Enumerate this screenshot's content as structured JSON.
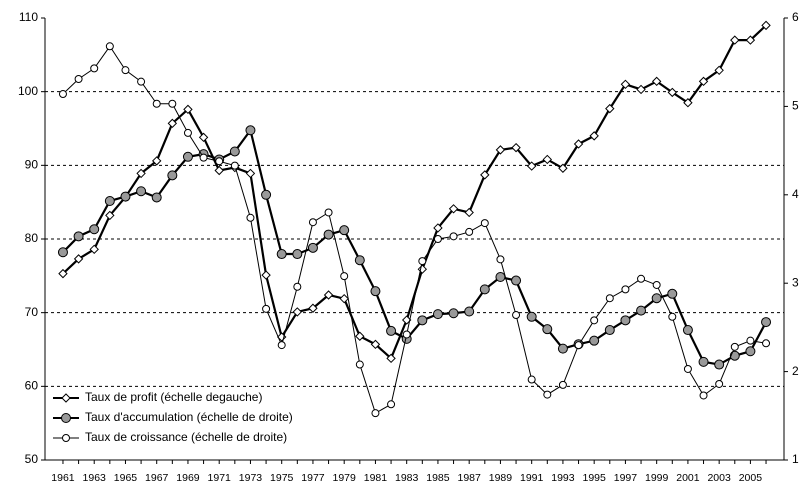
{
  "chart_data": {
    "type": "line",
    "x": [
      1961,
      1962,
      1963,
      1964,
      1965,
      1966,
      1967,
      1968,
      1969,
      1970,
      1971,
      1972,
      1973,
      1974,
      1975,
      1976,
      1977,
      1978,
      1979,
      1980,
      1981,
      1982,
      1983,
      1984,
      1985,
      1986,
      1987,
      1988,
      1989,
      1990,
      1991,
      1992,
      1993,
      1994,
      1995,
      1996,
      1997,
      1998,
      1999,
      2000,
      2001,
      2002,
      2003,
      2004,
      2005,
      2006
    ],
    "xlim": [
      1959.85,
      2007.15
    ],
    "xticks": [
      1961,
      1963,
      1965,
      1967,
      1969,
      1971,
      1973,
      1975,
      1977,
      1979,
      1981,
      1983,
      1985,
      1987,
      1989,
      1991,
      1993,
      1995,
      1997,
      1999,
      2001,
      2003,
      2005
    ],
    "ylim": [
      50,
      110
    ],
    "yticks": [
      50,
      60,
      70,
      80,
      90,
      100,
      110
    ],
    "y2lim": [
      1,
      6
    ],
    "y2ticks": [
      1,
      2,
      3,
      4,
      5,
      6
    ],
    "grid": true,
    "legend": "lower left",
    "series": [
      {
        "name": "Taux de profit (échelle degauche)",
        "color": "#000000",
        "marker": "diamond",
        "fill": "#ffffff",
        "values": [
          75.3,
          77.3,
          78.6,
          83.2,
          85.7,
          88.9,
          90.6,
          95.7,
          97.6,
          93.8,
          89.3,
          89.7,
          88.9,
          75.1,
          66.7,
          70.1,
          70.6,
          72.4,
          71.9,
          66.8,
          65.7,
          63.8,
          69.0,
          75.9,
          81.5,
          84.1,
          83.6,
          88.7,
          92.1,
          92.4,
          89.9,
          90.8,
          89.6,
          92.9,
          94.0,
          97.7,
          101.0,
          100.3,
          101.4,
          99.9,
          98.5,
          101.4,
          102.9,
          107.0,
          107.0,
          109.0
        ]
      },
      {
        "name": "Taux d'accumulation (échelle de droite)",
        "color": "#000000",
        "marker": "circle",
        "fill": "#999999",
        "axis": "y2",
        "values": [
          3.35,
          3.53,
          3.61,
          3.93,
          3.98,
          4.04,
          3.97,
          4.22,
          4.43,
          4.46,
          4.4,
          4.49,
          4.73,
          4.0,
          3.33,
          3.33,
          3.4,
          3.55,
          3.6,
          3.26,
          2.91,
          2.46,
          2.37,
          2.58,
          2.65,
          2.66,
          2.68,
          2.93,
          3.07,
          3.03,
          2.62,
          2.48,
          2.26,
          2.31,
          2.35,
          2.47,
          2.58,
          2.69,
          2.83,
          2.88,
          2.47,
          2.11,
          2.08,
          2.18,
          2.23,
          2.56
        ]
      },
      {
        "name": "Taux de croissance (échelle de droite)",
        "color": "#000000",
        "marker": "circle",
        "fill": "#ffffff",
        "axis": "y2",
        "values": [
          5.14,
          5.31,
          5.43,
          5.68,
          5.41,
          5.28,
          5.03,
          5.03,
          4.7,
          4.42,
          4.38,
          4.33,
          3.74,
          2.71,
          2.3,
          2.96,
          3.69,
          3.8,
          3.08,
          2.08,
          1.53,
          1.63,
          2.42,
          3.25,
          3.5,
          3.53,
          3.58,
          3.68,
          3.27,
          2.64,
          1.91,
          1.74,
          1.85,
          2.3,
          2.58,
          2.83,
          2.93,
          3.05,
          2.98,
          2.62,
          2.03,
          1.73,
          1.86,
          2.28,
          2.35,
          2.32
        ]
      }
    ]
  }
}
